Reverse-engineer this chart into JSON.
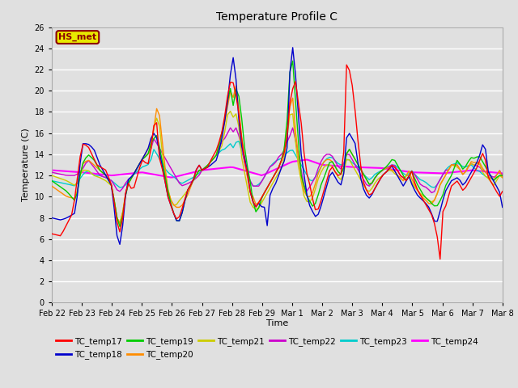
{
  "title": "Temperature Profile C",
  "xlabel": "Time",
  "ylabel": "Temperature (C)",
  "ylim": [
    0,
    26
  ],
  "yticks": [
    0,
    2,
    4,
    6,
    8,
    10,
    12,
    14,
    16,
    18,
    20,
    22,
    24,
    26
  ],
  "annotation_text": "HS_met",
  "annotation_color": "#8B0000",
  "annotation_bg": "#E8E800",
  "background_color": "#E0E0E0",
  "axes_bg": "#E0E0E0",
  "grid_color": "white",
  "series_colors": {
    "TC_temp17": "#FF0000",
    "TC_temp18": "#0000CC",
    "TC_temp19": "#00CC00",
    "TC_temp20": "#FF8C00",
    "TC_temp21": "#CCCC00",
    "TC_temp22": "#CC00CC",
    "TC_temp23": "#00CCCC",
    "TC_temp24": "#FF00FF"
  },
  "x_tick_labels": [
    "Feb 22",
    "Feb 23",
    "Feb 24",
    "Feb 25",
    "Feb 26",
    "Feb 27",
    "Feb 28",
    "Feb 29",
    "Mar 1",
    "Mar 2",
    "Mar 3",
    "Mar 4",
    "Mar 5",
    "Mar 6",
    "Mar 7",
    "Mar 8"
  ],
  "n_points": 160
}
